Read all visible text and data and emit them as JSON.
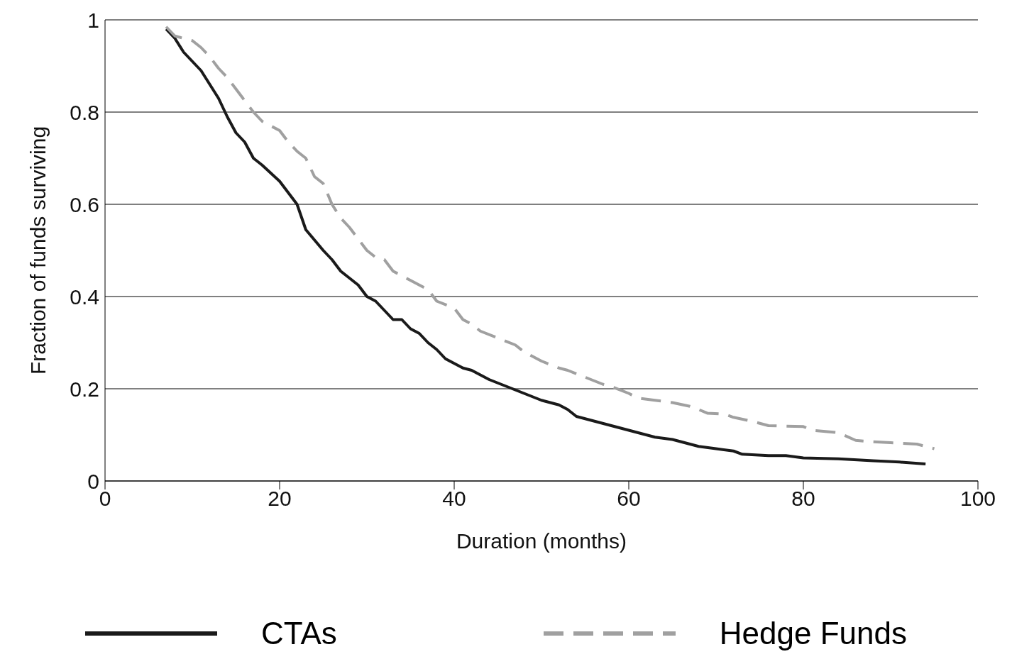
{
  "chart_data": {
    "type": "line",
    "xlabel": "Duration (months)",
    "ylabel": "Fraction of funds surviving",
    "xlim": [
      0,
      100
    ],
    "xticks": [
      0,
      20,
      40,
      60,
      80,
      100
    ],
    "ylim": [
      0,
      1
    ],
    "yticks": [
      0,
      0.2,
      0.4,
      0.6,
      0.8,
      1
    ],
    "grid": "y",
    "legend": "bottom",
    "marker": "none",
    "series": [
      {
        "name": "CTAs",
        "color": "#1a1a1a",
        "line_style": "solid",
        "x": [
          7,
          8,
          9,
          10,
          11,
          12,
          13,
          14,
          15,
          16,
          17,
          18,
          20,
          22,
          23,
          25,
          26,
          27,
          28,
          29,
          30,
          31,
          33,
          34,
          35,
          36,
          37,
          38,
          39,
          40,
          41,
          42,
          44,
          46,
          48,
          50,
          52,
          53,
          54,
          56,
          58,
          60,
          62,
          63,
          65,
          66,
          68,
          70,
          72,
          73,
          76,
          78,
          80,
          84,
          88,
          91,
          94
        ],
        "values": [
          0.98,
          0.96,
          0.93,
          0.91,
          0.89,
          0.86,
          0.83,
          0.79,
          0.755,
          0.735,
          0.7,
          0.685,
          0.65,
          0.6,
          0.545,
          0.5,
          0.48,
          0.455,
          0.44,
          0.425,
          0.4,
          0.39,
          0.35,
          0.35,
          0.33,
          0.32,
          0.3,
          0.285,
          0.265,
          0.255,
          0.245,
          0.24,
          0.22,
          0.205,
          0.19,
          0.175,
          0.165,
          0.155,
          0.14,
          0.13,
          0.12,
          0.11,
          0.1,
          0.095,
          0.09,
          0.085,
          0.075,
          0.07,
          0.065,
          0.058,
          0.055,
          0.055,
          0.05,
          0.048,
          0.044,
          0.041,
          0.037
        ]
      },
      {
        "name": "Hedge Funds",
        "color": "#a0a0a0",
        "line_style": "dashed",
        "x": [
          7,
          8,
          10,
          11,
          12,
          13,
          14,
          15,
          16,
          17,
          18,
          20,
          21,
          22,
          23,
          24,
          25,
          26,
          27,
          28,
          30,
          31,
          32,
          33,
          35,
          37,
          38,
          40,
          41,
          42,
          43,
          45,
          47,
          48,
          50,
          52,
          53,
          55,
          57,
          58,
          60,
          61,
          63,
          65,
          67,
          68,
          69,
          71,
          72,
          74,
          76,
          80,
          81,
          84,
          86,
          88,
          90,
          93,
          95
        ],
        "values": [
          0.985,
          0.965,
          0.955,
          0.94,
          0.92,
          0.895,
          0.875,
          0.85,
          0.825,
          0.8,
          0.78,
          0.76,
          0.735,
          0.715,
          0.7,
          0.66,
          0.645,
          0.6,
          0.57,
          0.55,
          0.5,
          0.485,
          0.48,
          0.455,
          0.435,
          0.415,
          0.39,
          0.375,
          0.35,
          0.34,
          0.325,
          0.31,
          0.295,
          0.28,
          0.26,
          0.245,
          0.24,
          0.225,
          0.21,
          0.205,
          0.19,
          0.18,
          0.175,
          0.17,
          0.162,
          0.155,
          0.147,
          0.145,
          0.138,
          0.13,
          0.12,
          0.118,
          0.11,
          0.105,
          0.088,
          0.085,
          0.083,
          0.08,
          0.07
        ]
      }
    ]
  }
}
